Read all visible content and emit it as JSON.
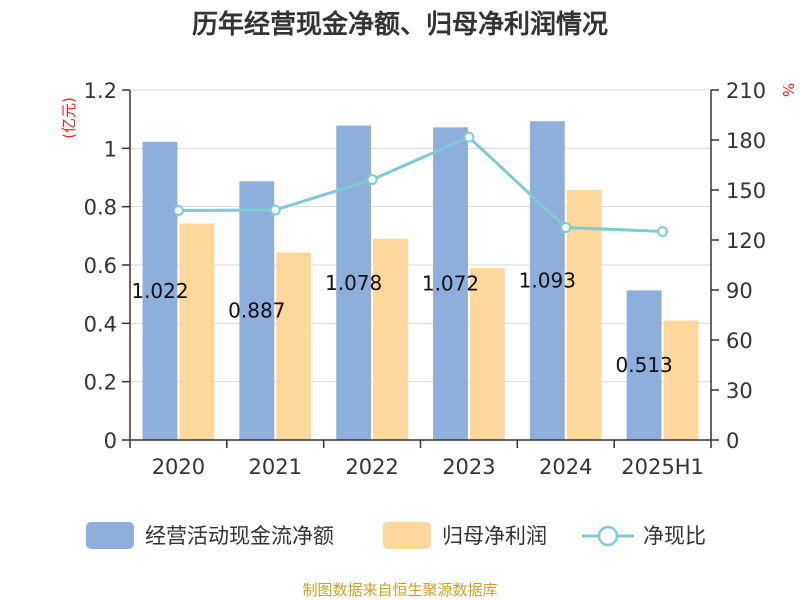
{
  "chart_data": {
    "type": "bar",
    "title": "历年经营现金净额、归母净利润情况",
    "categories": [
      "2020",
      "2021",
      "2022",
      "2023",
      "2024",
      "2025H1"
    ],
    "series": [
      {
        "name": "经营活动现金流净额",
        "type": "bar",
        "axis": "left",
        "color": "#8eaedb",
        "values": [
          1.022,
          0.887,
          1.078,
          1.072,
          1.093,
          0.513
        ],
        "labels": [
          "1.022",
          "0.887",
          "1.078",
          "1.072",
          "1.093",
          "0.513"
        ]
      },
      {
        "name": "归母净利润",
        "type": "bar",
        "axis": "left",
        "color": "#fdd89a",
        "values": [
          0.742,
          0.643,
          0.69,
          0.59,
          0.857,
          0.41
        ]
      },
      {
        "name": "净现比",
        "type": "line",
        "axis": "right",
        "color": "#7dccd3",
        "values": [
          137.7,
          138.0,
          156.2,
          181.7,
          127.5,
          125.1
        ]
      }
    ],
    "y_left": {
      "unit": "(亿元)",
      "min": 0,
      "max": 1.2,
      "ticks": [
        "0",
        "0.2",
        "0.4",
        "0.6",
        "0.8",
        "1",
        "1.2"
      ]
    },
    "y_right": {
      "unit": "%",
      "min": 0,
      "max": 210,
      "ticks": [
        "0",
        "30",
        "60",
        "90",
        "120",
        "150",
        "180",
        "210"
      ]
    },
    "grid": true,
    "legend_position": "bottom"
  },
  "footer": {
    "source": "制图数据来自恒生聚源数据库"
  }
}
